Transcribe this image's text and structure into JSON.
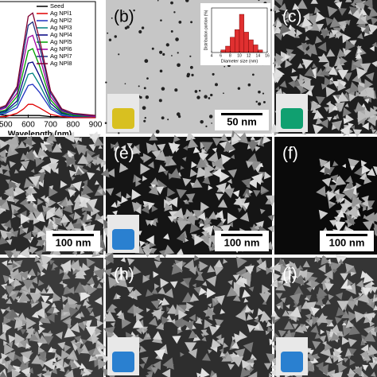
{
  "chart_data": [
    {
      "type": "line",
      "xlabel": "Wavelength (nm)",
      "x": [
        460,
        500,
        550,
        580,
        600,
        620,
        650,
        700,
        750,
        800,
        900
      ],
      "xlim": [
        460,
        900
      ],
      "xticks": [
        500,
        600,
        700,
        800,
        900
      ],
      "ylim": [
        0,
        1
      ],
      "series": [
        {
          "name": "Seed",
          "color": "#000000",
          "values": [
            0.03,
            0.02,
            0.02,
            0.02,
            0.02,
            0.02,
            0.02,
            0.01,
            0.01,
            0.01,
            0.01
          ]
        },
        {
          "name": "Ag NPl1",
          "color": "#e00000",
          "values": [
            0.01,
            0.01,
            0.04,
            0.08,
            0.12,
            0.12,
            0.09,
            0.03,
            0.01,
            0,
            0
          ]
        },
        {
          "name": "Ag NPl2",
          "color": "#2030c0",
          "values": [
            0.02,
            0.04,
            0.09,
            0.21,
            0.29,
            0.3,
            0.23,
            0.08,
            0.02,
            0.01,
            0.01
          ]
        },
        {
          "name": "Ag NPl3",
          "color": "#008080",
          "values": [
            0.03,
            0.05,
            0.12,
            0.28,
            0.39,
            0.4,
            0.3,
            0.1,
            0.03,
            0.02,
            0.01
          ]
        },
        {
          "name": "Ag NPl4",
          "color": "#000080",
          "values": [
            0.04,
            0.06,
            0.15,
            0.35,
            0.49,
            0.5,
            0.38,
            0.13,
            0.04,
            0.02,
            0.01
          ]
        },
        {
          "name": "Ag NPl5",
          "color": "#00a000",
          "values": [
            0.05,
            0.07,
            0.19,
            0.43,
            0.6,
            0.62,
            0.47,
            0.16,
            0.05,
            0.02,
            0.01
          ]
        },
        {
          "name": "Ag NPl6",
          "color": "#a000a0",
          "values": [
            0.06,
            0.09,
            0.22,
            0.52,
            0.72,
            0.74,
            0.56,
            0.19,
            0.06,
            0.03,
            0.01
          ]
        },
        {
          "name": "Ag NPl7",
          "color": "#203080",
          "values": [
            0.07,
            0.1,
            0.26,
            0.6,
            0.83,
            0.86,
            0.65,
            0.22,
            0.07,
            0.03,
            0.02
          ]
        },
        {
          "name": "Ag NPl8",
          "color": "#800030",
          "values": [
            0.08,
            0.11,
            0.28,
            0.66,
            0.91,
            0.94,
            0.71,
            0.24,
            0.08,
            0.04,
            0.02
          ]
        }
      ]
    },
    {
      "type": "histogram",
      "xlabel": "Diameter size (nm)",
      "ylabel": "Distribution portion (%)",
      "bins": [
        6,
        7,
        8,
        9,
        10,
        11,
        12,
        13,
        14,
        15
      ],
      "values": [
        2,
        5,
        12,
        18,
        30,
        16,
        10,
        6,
        2
      ],
      "color": "#e03030",
      "xlim": [
        4,
        16
      ],
      "xticks": [
        4,
        6,
        8,
        10,
        12,
        14,
        16
      ],
      "ylim": [
        0,
        35
      ]
    }
  ],
  "panels": [
    {
      "label": "(b)",
      "scale_bar": "50 nm"
    },
    {
      "label": "(c)"
    },
    {
      "scale_bar": "100 nm"
    },
    {
      "label": "(e)",
      "scale_bar": "100 nm"
    },
    {
      "label": "(f)",
      "scale_bar": "100 nm"
    },
    {
      "label": "(h)"
    },
    {
      "label": "(i)"
    }
  ]
}
